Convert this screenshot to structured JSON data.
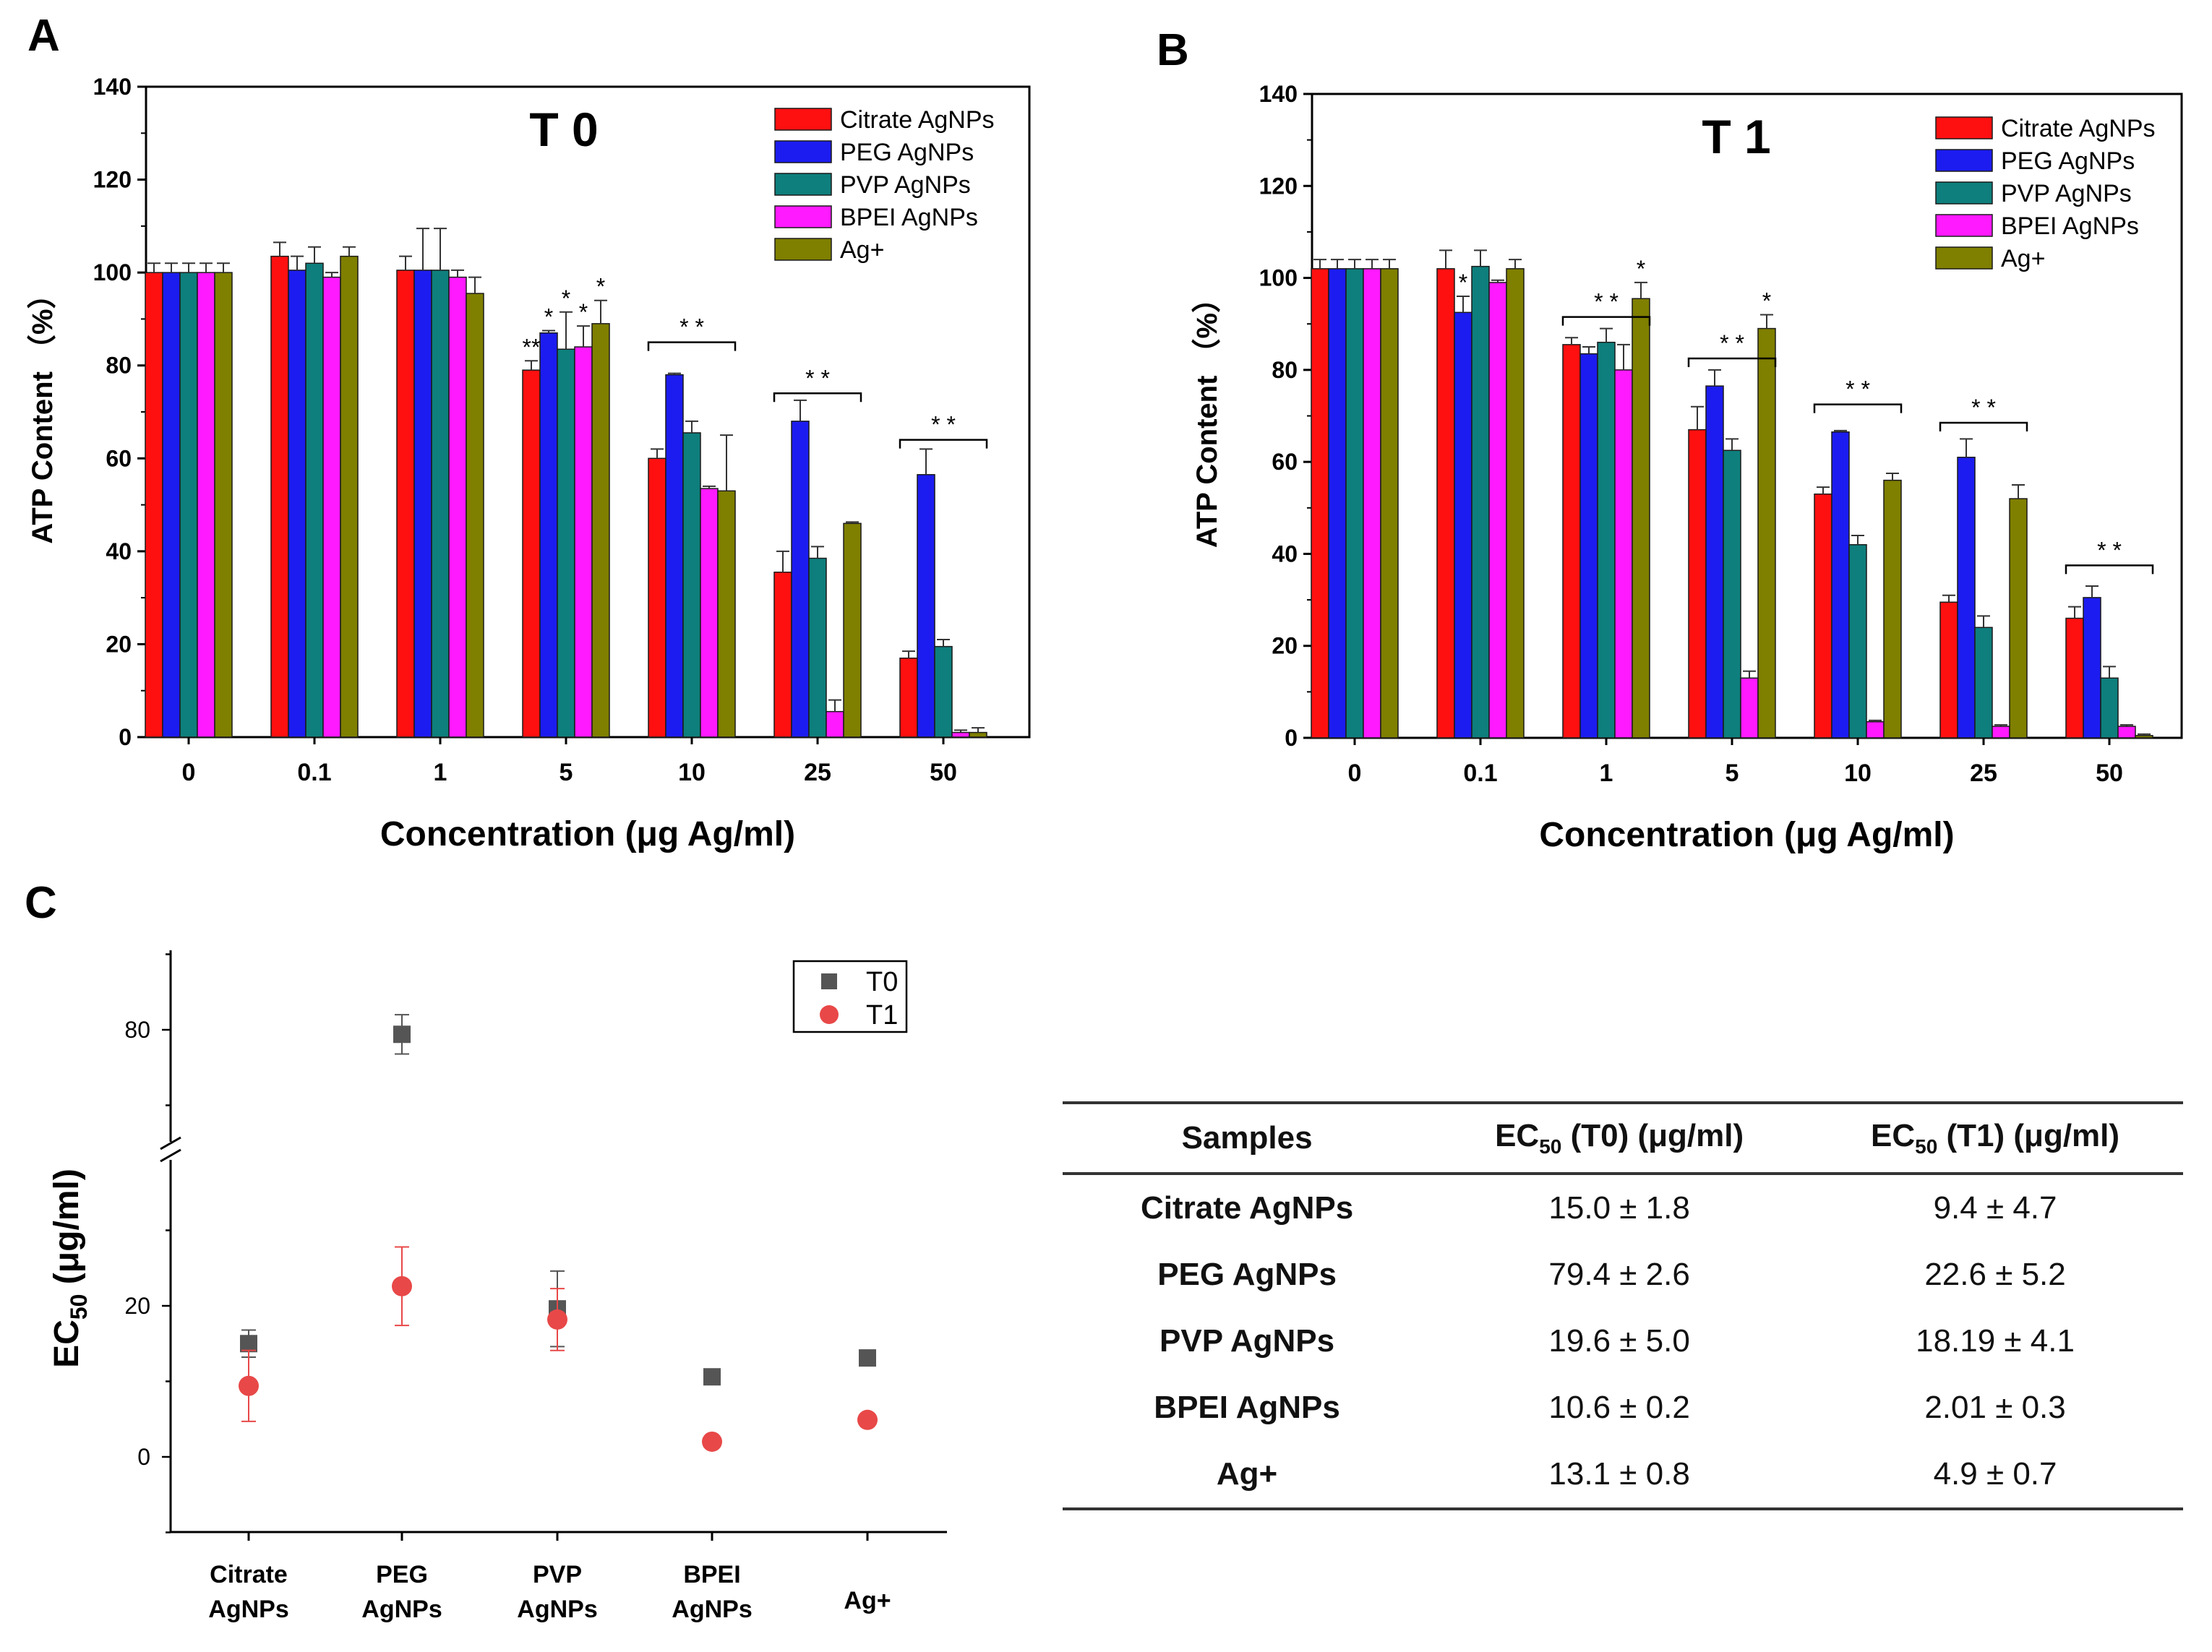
{
  "panel_labels": {
    "a": "A",
    "b": "B",
    "c": "C"
  },
  "colors": {
    "Citrate AgNPs": "#ff1010",
    "PEG AgNPs": "#1c1cf0",
    "PVP AgNPs": "#0e7f7c",
    "BPEI AgNPs": "#ff1aff",
    "Ag+": "#7f7f00",
    "T0": "#555555",
    "T1": "#e84848"
  },
  "chart_data": [
    {
      "type": "bar",
      "panel": "A",
      "title": "T 0",
      "xlabel": "Concentration (μg Ag/ml)",
      "ylabel": "ATP Content （%）",
      "ylim": [
        0,
        140
      ],
      "yticks": [
        0,
        20,
        40,
        60,
        80,
        100,
        120,
        140
      ],
      "categories": [
        "0",
        "0.1",
        "1",
        "5",
        "10",
        "25",
        "50"
      ],
      "legend_position": "top-right",
      "series": [
        {
          "name": "Citrate AgNPs",
          "values": [
            100,
            103.5,
            100.5,
            79,
            60,
            35.5,
            17
          ],
          "errors": [
            2,
            3,
            3,
            2,
            2,
            4.5,
            1.5
          ]
        },
        {
          "name": "PEG AgNPs",
          "values": [
            100,
            100.5,
            100.5,
            87,
            78,
            68,
            56.5
          ],
          "errors": [
            2,
            3,
            9,
            0.5,
            0.3,
            4.5,
            5.5
          ]
        },
        {
          "name": "PVP AgNPs",
          "values": [
            100,
            102,
            100.5,
            83.5,
            65.5,
            38.5,
            19.5
          ],
          "errors": [
            2,
            3.5,
            9,
            8,
            2.5,
            2.5,
            1.5
          ]
        },
        {
          "name": "BPEI AgNPs",
          "values": [
            100,
            99,
            99,
            84,
            53.5,
            5.5,
            1
          ],
          "errors": [
            2,
            1,
            1.5,
            4.5,
            0.5,
            2.5,
            0.5
          ]
        },
        {
          "name": "Ag+",
          "values": [
            100,
            103.5,
            95.5,
            89,
            53,
            46,
            1
          ],
          "errors": [
            2,
            2,
            3.5,
            5,
            12,
            0.3,
            1
          ]
        }
      ],
      "annotations": [
        {
          "text": "**",
          "category": "5",
          "series": "Citrate AgNPs"
        },
        {
          "text": "*",
          "category": "5",
          "series": "PEG AgNPs"
        },
        {
          "text": "*",
          "category": "5",
          "series": "PVP AgNPs"
        },
        {
          "text": "*",
          "category": "5",
          "series": "BPEI AgNPs"
        },
        {
          "text": "*",
          "category": "5",
          "series": "Ag+"
        },
        {
          "text": "* *",
          "category": "10",
          "bracket": true,
          "y": 85
        },
        {
          "text": "* *",
          "category": "25",
          "bracket": true,
          "y": 74
        },
        {
          "text": "* *",
          "category": "50",
          "bracket": true,
          "y": 64
        }
      ]
    },
    {
      "type": "bar",
      "panel": "B",
      "title": "T 1",
      "xlabel": "Concentration (μg Ag/ml)",
      "ylabel": "ATP Content （%）",
      "ylim": [
        0,
        140
      ],
      "yticks": [
        0,
        20,
        40,
        60,
        80,
        100,
        120,
        140
      ],
      "categories": [
        "0",
        "0.1",
        "1",
        "5",
        "10",
        "25",
        "50"
      ],
      "legend_position": "top-right",
      "series": [
        {
          "name": "Citrate AgNPs",
          "values": [
            102,
            102,
            85.5,
            67,
            53,
            29.5,
            26
          ],
          "errors": [
            2,
            4,
            1.5,
            5,
            1.5,
            1.5,
            2.5
          ]
        },
        {
          "name": "PEG AgNPs",
          "values": [
            102,
            92.5,
            83.5,
            76.5,
            66.5,
            61,
            30.5
          ],
          "errors": [
            2,
            3.5,
            1.5,
            3.5,
            0.3,
            4,
            2.5
          ]
        },
        {
          "name": "PVP AgNPs",
          "values": [
            102,
            102.5,
            86,
            62.5,
            42,
            24,
            13
          ],
          "errors": [
            2,
            3.5,
            3,
            2.5,
            2,
            2.5,
            2.5
          ]
        },
        {
          "name": "BPEI AgNPs",
          "values": [
            102,
            99,
            80,
            13,
            3.5,
            2.5,
            2.5
          ],
          "errors": [
            2,
            0.5,
            5.5,
            1.5,
            0.3,
            0.3,
            0.3
          ]
        },
        {
          "name": "Ag+",
          "values": [
            102,
            102,
            95.5,
            89,
            56,
            52,
            0.5
          ],
          "errors": [
            2,
            2,
            3.5,
            3,
            1.5,
            3,
            0.3
          ]
        }
      ],
      "annotations": [
        {
          "text": "*",
          "category": "0.1",
          "series": "PEG AgNPs"
        },
        {
          "text": "* *",
          "category": "1",
          "bracket": true,
          "y": 91.5
        },
        {
          "text": "*",
          "category": "1",
          "series": "Ag+"
        },
        {
          "text": "* *",
          "category": "5",
          "bracket": true,
          "y": 82.5
        },
        {
          "text": "*",
          "category": "5",
          "series": "Ag+"
        },
        {
          "text": "* *",
          "category": "10",
          "bracket": true,
          "y": 72.5
        },
        {
          "text": "* *",
          "category": "25",
          "bracket": true,
          "y": 68.5
        },
        {
          "text": "* *",
          "category": "50",
          "bracket": true,
          "y": 37.5
        }
      ]
    },
    {
      "type": "scatter",
      "panel": "C",
      "ylabel": "EC50 (μg/ml)",
      "ylabel_main": "EC",
      "ylabel_sub": "50",
      "ylabel_unit": " (μg/ml)",
      "categories": [
        "Citrate AgNPs",
        "PEG AgNPs",
        "PVP AgNPs",
        "BPEI AgNPs",
        "Ag+"
      ],
      "category_lines": [
        [
          "Citrate",
          "AgNPs"
        ],
        [
          "PEG",
          "AgNPs"
        ],
        [
          "PVP",
          "AgNPs"
        ],
        [
          "BPEI",
          "AgNPs"
        ],
        [
          "Ag+"
        ]
      ],
      "ytick_labels": [
        "0",
        "20",
        "80"
      ],
      "yaxis_break": [
        35,
        70
      ],
      "legend_position": "top-right",
      "series": [
        {
          "name": "T0",
          "marker": "square",
          "values": [
            15.0,
            79.4,
            19.6,
            10.6,
            13.1
          ],
          "errors": [
            1.8,
            2.6,
            5.0,
            0.2,
            0.8
          ]
        },
        {
          "name": "T1",
          "marker": "circle",
          "values": [
            9.4,
            22.6,
            18.19,
            2.01,
            4.9
          ],
          "errors": [
            4.7,
            5.2,
            4.1,
            0.3,
            0.7
          ]
        }
      ]
    }
  ],
  "table": {
    "headers": {
      "samples": "Samples",
      "ec_t0_prefix": "EC",
      "ec_t0_sub": "50",
      "ec_t0_suffix": " (T0) (μg/ml)",
      "ec_t1_prefix": "EC",
      "ec_t1_sub": "50",
      "ec_t1_suffix": " (T1) (μg/ml)"
    },
    "rows": [
      {
        "sample": "Citrate AgNPs",
        "t0": "15.0 ± 1.8",
        "t1": "9.4 ± 4.7"
      },
      {
        "sample": "PEG AgNPs",
        "t0": "79.4 ± 2.6",
        "t1": "22.6 ± 5.2"
      },
      {
        "sample": "PVP AgNPs",
        "t0": "19.6 ± 5.0",
        "t1": "18.19 ± 4.1"
      },
      {
        "sample": "BPEI AgNPs",
        "t0": "10.6 ± 0.2",
        "t1": "2.01 ± 0.3"
      },
      {
        "sample": "Ag+",
        "t0": "13.1 ± 0.8",
        "t1": "4.9 ± 0.7"
      }
    ]
  }
}
